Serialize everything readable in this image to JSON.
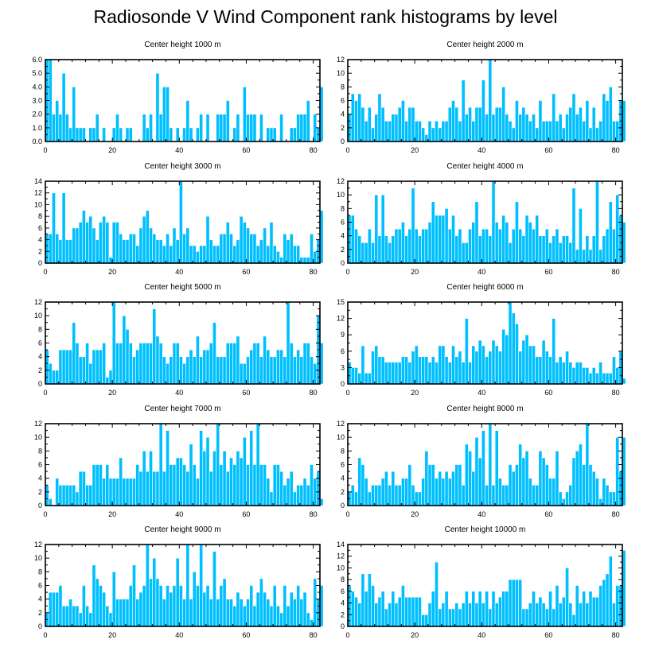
{
  "title": "Radiosonde V Wind Component rank histograms by level",
  "colors": {
    "bar": "#00bfff",
    "bar_edge": "#ffffff",
    "axis": "#000000"
  },
  "chart_data": [
    {
      "type": "bar",
      "title": "Center height 1000 m",
      "xlim": [
        0,
        82
      ],
      "ylim": [
        0,
        6
      ],
      "x_ticks": [
        0,
        20,
        40,
        60,
        80
      ],
      "y_ticks": [
        "0.0",
        "1.0",
        "2.0",
        "3.0",
        "4.0",
        "5.0",
        "6.0"
      ],
      "values": [
        6,
        6,
        2,
        3,
        2,
        5,
        2,
        1,
        4,
        1,
        1,
        1,
        0,
        1,
        1,
        2,
        0,
        1,
        0,
        0,
        1,
        2,
        1,
        0,
        1,
        1,
        0,
        0,
        0,
        2,
        1,
        2,
        0,
        5,
        2,
        4,
        4,
        1,
        0,
        1,
        0,
        1,
        3,
        1,
        0,
        1,
        2,
        0,
        2,
        0,
        0,
        2,
        2,
        2,
        3,
        0,
        1,
        2,
        0,
        4,
        2,
        2,
        2,
        0,
        2,
        0,
        1,
        1,
        1,
        0,
        2,
        0,
        0,
        1,
        1,
        2,
        2,
        2,
        3,
        0,
        2,
        1,
        4
      ]
    },
    {
      "type": "bar",
      "title": "Center height 2000 m",
      "xlim": [
        0,
        82
      ],
      "ylim": [
        0,
        12
      ],
      "x_ticks": [
        0,
        20,
        40,
        60,
        80
      ],
      "y_ticks": [
        "0",
        "2",
        "4",
        "6",
        "8",
        "10",
        "12"
      ],
      "values": [
        4,
        7,
        6,
        7,
        5,
        3,
        5,
        2,
        4,
        7,
        5,
        3,
        3,
        4,
        4,
        5,
        6,
        3,
        5,
        5,
        3,
        3,
        2,
        1,
        3,
        2,
        3,
        2,
        3,
        3,
        5,
        6,
        5,
        3,
        9,
        4,
        5,
        3,
        5,
        5,
        9,
        4,
        12,
        4,
        5,
        5,
        8,
        4,
        3,
        2,
        6,
        4,
        5,
        4,
        3,
        4,
        2,
        6,
        3,
        3,
        3,
        7,
        3,
        4,
        2,
        4,
        5,
        7,
        4,
        5,
        3,
        6,
        2,
        5,
        2,
        3,
        7,
        6,
        8,
        3,
        3,
        6,
        6
      ]
    },
    {
      "type": "bar",
      "title": "Center height 3000 m",
      "xlim": [
        0,
        82
      ],
      "ylim": [
        0,
        14
      ],
      "x_ticks": [
        0,
        20,
        40,
        60,
        80
      ],
      "y_ticks": [
        "0",
        "2",
        "4",
        "6",
        "8",
        "10",
        "12",
        "14"
      ],
      "values": [
        5,
        5,
        12,
        5,
        4,
        12,
        4,
        4,
        6,
        6,
        7,
        9,
        7,
        8,
        6,
        4,
        7,
        8,
        7,
        1,
        7,
        7,
        5,
        4,
        4,
        5,
        5,
        3,
        6,
        8,
        9,
        6,
        5,
        4,
        4,
        3,
        5,
        3,
        6,
        4,
        14,
        5,
        6,
        3,
        3,
        2,
        3,
        3,
        8,
        4,
        3,
        3,
        5,
        5,
        7,
        5,
        3,
        4,
        8,
        7,
        6,
        5,
        5,
        3,
        4,
        6,
        3,
        7,
        3,
        2,
        1,
        5,
        4,
        5,
        3,
        3,
        1,
        1,
        1,
        5,
        2,
        4,
        9
      ]
    },
    {
      "type": "bar",
      "title": "Center height 4000 m",
      "xlim": [
        0,
        82
      ],
      "ylim": [
        0,
        12
      ],
      "x_ticks": [
        0,
        20,
        40,
        60,
        80
      ],
      "y_ticks": [
        "0",
        "2",
        "4",
        "6",
        "8",
        "10",
        "12"
      ],
      "values": [
        7,
        7,
        5,
        4,
        3,
        3,
        5,
        3,
        10,
        4,
        10,
        4,
        3,
        4,
        5,
        5,
        6,
        4,
        5,
        11,
        5,
        4,
        5,
        5,
        6,
        9,
        7,
        7,
        7,
        8,
        5,
        7,
        4,
        5,
        3,
        3,
        5,
        6,
        9,
        4,
        5,
        5,
        4,
        12,
        6,
        5,
        7,
        6,
        3,
        5,
        9,
        5,
        4,
        7,
        6,
        5,
        7,
        4,
        4,
        5,
        3,
        4,
        5,
        3,
        4,
        4,
        3,
        11,
        2,
        8,
        2,
        4,
        2,
        4,
        12,
        2,
        4,
        5,
        9,
        5,
        10,
        7,
        6
      ]
    },
    {
      "type": "bar",
      "title": "Center height 5000 m",
      "xlim": [
        0,
        82
      ],
      "ylim": [
        0,
        12
      ],
      "x_ticks": [
        0,
        20,
        40,
        60,
        80
      ],
      "y_ticks": [
        "0",
        "2",
        "4",
        "6",
        "8",
        "10",
        "12"
      ],
      "values": [
        5,
        3,
        2,
        2,
        5,
        5,
        5,
        5,
        9,
        6,
        4,
        4,
        6,
        3,
        5,
        5,
        5,
        6,
        1,
        2,
        12,
        6,
        6,
        10,
        8,
        6,
        4,
        5,
        6,
        6,
        6,
        6,
        11,
        7,
        6,
        4,
        3,
        4,
        6,
        6,
        4,
        3,
        4,
        5,
        4,
        7,
        4,
        5,
        5,
        6,
        9,
        4,
        4,
        4,
        6,
        6,
        6,
        7,
        3,
        3,
        4,
        5,
        6,
        6,
        4,
        7,
        5,
        4,
        4,
        5,
        5,
        4,
        12,
        6,
        4,
        5,
        4,
        6,
        6,
        4,
        3,
        10,
        6
      ]
    },
    {
      "type": "bar",
      "title": "Center height 6000 m",
      "xlim": [
        0,
        82
      ],
      "ylim": [
        0,
        15
      ],
      "x_ticks": [
        0,
        20,
        40,
        60,
        80
      ],
      "y_ticks": [
        "0",
        "3",
        "6",
        "9",
        "12",
        "15"
      ],
      "values": [
        4,
        3,
        3,
        2,
        7,
        2,
        2,
        6,
        7,
        5,
        5,
        4,
        4,
        4,
        4,
        4,
        5,
        5,
        4,
        6,
        7,
        5,
        5,
        5,
        4,
        5,
        4,
        7,
        7,
        5,
        4,
        7,
        5,
        6,
        4,
        12,
        4,
        7,
        6,
        8,
        7,
        5,
        6,
        8,
        7,
        6,
        10,
        9,
        15,
        13,
        11,
        6,
        8,
        9,
        7,
        7,
        5,
        5,
        8,
        6,
        5,
        12,
        4,
        5,
        4,
        6,
        4,
        3,
        4,
        4,
        3,
        3,
        2,
        3,
        2,
        4,
        2,
        2,
        2,
        5,
        3,
        6,
        1
      ]
    },
    {
      "type": "bar",
      "title": "Center height 7000 m",
      "xlim": [
        0,
        82
      ],
      "ylim": [
        0,
        12
      ],
      "x_ticks": [
        0,
        20,
        40,
        60,
        80
      ],
      "y_ticks": [
        "0",
        "2",
        "4",
        "6",
        "8",
        "10",
        "12"
      ],
      "values": [
        3,
        1,
        0,
        4,
        3,
        3,
        3,
        3,
        3,
        2,
        5,
        5,
        3,
        3,
        6,
        6,
        6,
        4,
        6,
        4,
        4,
        4,
        7,
        4,
        4,
        4,
        4,
        6,
        5,
        8,
        5,
        8,
        5,
        5,
        12,
        5,
        11,
        6,
        6,
        7,
        7,
        6,
        5,
        9,
        6,
        4,
        11,
        8,
        10,
        5,
        8,
        12,
        6,
        8,
        5,
        7,
        6,
        8,
        7,
        10,
        6,
        11,
        6,
        12,
        6,
        6,
        4,
        2,
        6,
        6,
        5,
        3,
        4,
        5,
        2,
        3,
        3,
        4,
        3,
        6,
        4,
        5,
        1
      ]
    },
    {
      "type": "bar",
      "title": "Center height 8000 m",
      "xlim": [
        0,
        82
      ],
      "ylim": [
        0,
        12
      ],
      "x_ticks": [
        0,
        20,
        40,
        60,
        80
      ],
      "y_ticks": [
        "0",
        "2",
        "4",
        "6",
        "8",
        "10",
        "12"
      ],
      "values": [
        2,
        3,
        2,
        7,
        6,
        4,
        2,
        3,
        3,
        3,
        4,
        5,
        3,
        5,
        3,
        3,
        4,
        4,
        6,
        3,
        2,
        2,
        4,
        8,
        6,
        6,
        4,
        5,
        4,
        5,
        4,
        5,
        6,
        6,
        3,
        9,
        8,
        5,
        10,
        7,
        11,
        3,
        12,
        3,
        11,
        4,
        3,
        3,
        6,
        5,
        6,
        9,
        7,
        8,
        4,
        3,
        3,
        8,
        7,
        6,
        4,
        4,
        8,
        2,
        1,
        2,
        3,
        7,
        8,
        9,
        6,
        12,
        6,
        5,
        4,
        1,
        4,
        3,
        2,
        2,
        10,
        5,
        10
      ]
    },
    {
      "type": "bar",
      "title": "Center height 9000 m",
      "xlim": [
        0,
        82
      ],
      "ylim": [
        0,
        12
      ],
      "x_ticks": [
        0,
        20,
        40,
        60,
        80
      ],
      "y_ticks": [
        "0",
        "2",
        "4",
        "6",
        "8",
        "10",
        "12"
      ],
      "values": [
        2,
        5,
        5,
        5,
        6,
        3,
        3,
        4,
        3,
        3,
        2,
        6,
        3,
        2,
        9,
        7,
        6,
        5,
        3,
        2,
        8,
        4,
        4,
        4,
        4,
        6,
        9,
        4,
        5,
        6,
        12,
        7,
        10,
        7,
        6,
        4,
        6,
        5,
        6,
        10,
        6,
        4,
        12,
        4,
        8,
        6,
        12,
        5,
        6,
        4,
        11,
        4,
        6,
        7,
        4,
        4,
        3,
        5,
        4,
        3,
        4,
        6,
        3,
        5,
        7,
        5,
        4,
        3,
        6,
        3,
        2,
        6,
        3,
        5,
        4,
        6,
        4,
        5,
        2,
        1,
        7,
        4,
        6
      ]
    },
    {
      "type": "bar",
      "title": "Center height 10000 m",
      "xlim": [
        0,
        82
      ],
      "ylim": [
        0,
        14
      ],
      "x_ticks": [
        0,
        20,
        40,
        60,
        80
      ],
      "y_ticks": [
        "0",
        "2",
        "4",
        "6",
        "8",
        "10",
        "12",
        "14"
      ],
      "values": [
        7,
        6,
        5,
        4,
        9,
        6,
        9,
        7,
        4,
        5,
        6,
        3,
        4,
        6,
        4,
        5,
        7,
        5,
        5,
        5,
        5,
        5,
        2,
        2,
        4,
        6,
        11,
        3,
        4,
        6,
        3,
        3,
        4,
        3,
        4,
        6,
        4,
        6,
        4,
        6,
        4,
        6,
        3,
        6,
        4,
        5,
        6,
        6,
        8,
        8,
        8,
        8,
        3,
        3,
        4,
        6,
        4,
        5,
        4,
        3,
        6,
        3,
        7,
        4,
        5,
        10,
        4,
        2,
        7,
        4,
        6,
        4,
        6,
        5,
        5,
        7,
        8,
        9,
        12,
        4,
        7,
        7,
        13
      ]
    }
  ]
}
